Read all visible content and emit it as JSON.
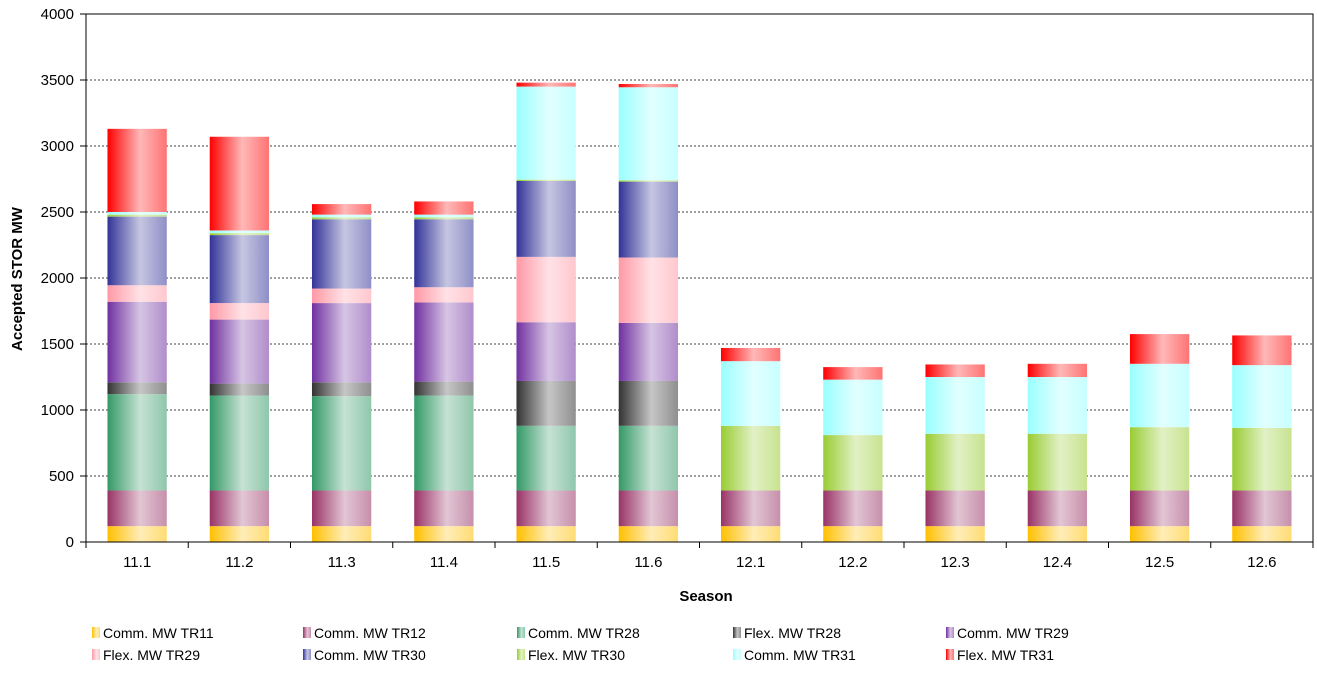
{
  "chart_data": {
    "type": "bar",
    "stacked": true,
    "xlabel": "Season",
    "ylabel": "Accepted STOR MW",
    "ylim": [
      0,
      4000
    ],
    "yticks": [
      0,
      500,
      1000,
      1500,
      2000,
      2500,
      3000,
      3500,
      4000
    ],
    "grid": "horizontal-dashed",
    "legend_position": "bottom",
    "categories": [
      "11.1",
      "11.2",
      "11.3",
      "11.4",
      "11.5",
      "11.6",
      "12.1",
      "12.2",
      "12.3",
      "12.4",
      "12.5",
      "12.6"
    ],
    "series": [
      {
        "name": "Comm. MW TR11",
        "color": "#FFC000",
        "values": [
          120,
          120,
          120,
          120,
          120,
          120,
          120,
          120,
          120,
          120,
          120,
          120
        ]
      },
      {
        "name": "Comm. MW TR12",
        "color": "#993366",
        "values": [
          270,
          270,
          270,
          270,
          270,
          270,
          270,
          270,
          270,
          270,
          270,
          270
        ]
      },
      {
        "name": "Comm. MW TR28",
        "color": "#339966",
        "values": [
          730,
          720,
          715,
          720,
          490,
          490,
          0,
          0,
          0,
          0,
          0,
          0
        ]
      },
      {
        "name": "Flex. MW TR28",
        "color": "#333333",
        "values": [
          90,
          90,
          105,
          105,
          340,
          340,
          0,
          0,
          0,
          0,
          0,
          0
        ]
      },
      {
        "name": "Comm. MW TR29",
        "color": "#7030A0",
        "values": [
          610,
          485,
          600,
          600,
          445,
          440,
          0,
          0,
          0,
          0,
          0,
          0
        ]
      },
      {
        "name": "Flex. MW TR29",
        "color": "#FF99A6",
        "values": [
          125,
          125,
          110,
          115,
          495,
          495,
          0,
          0,
          0,
          0,
          0,
          0
        ]
      },
      {
        "name": "Comm. MW TR30",
        "color": "#333399",
        "values": [
          520,
          515,
          525,
          515,
          575,
          575,
          0,
          0,
          0,
          0,
          0,
          0
        ]
      },
      {
        "name": "Flex. MW TR30",
        "color": "#99CC33",
        "values": [
          15,
          15,
          15,
          15,
          10,
          10,
          490,
          420,
          430,
          430,
          480,
          475
        ]
      },
      {
        "name": "Comm. MW TR31",
        "color": "#99FFFF",
        "values": [
          20,
          20,
          20,
          20,
          705,
          705,
          490,
          420,
          430,
          430,
          480,
          475
        ]
      },
      {
        "name": "Flex. MW TR31",
        "color": "#FF0000",
        "values": [
          630,
          710,
          80,
          100,
          30,
          25,
          100,
          95,
          95,
          100,
          225,
          225
        ]
      }
    ]
  }
}
